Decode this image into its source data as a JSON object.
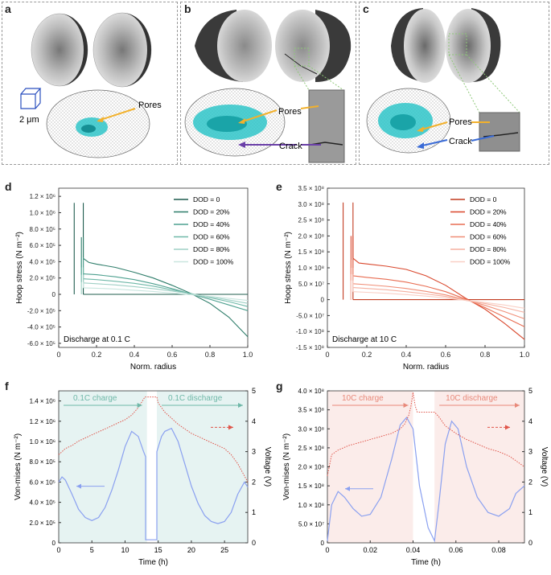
{
  "panels": {
    "a": {
      "label": "a",
      "scale_bar": "2 μm",
      "pores": "Pores"
    },
    "b": {
      "label": "b",
      "pores": "Pores",
      "crack": "Crack"
    },
    "c": {
      "label": "c",
      "pores": "Pores",
      "crack": "Crack"
    },
    "d": {
      "label": "d"
    },
    "e": {
      "label": "e"
    },
    "f": {
      "label": "f"
    },
    "g": {
      "label": "g"
    }
  },
  "colors": {
    "green": "#2e7d6a",
    "red": "#d9472c",
    "teal_fill": "#e6f3f2",
    "pink_fill": "#fbecea",
    "blue": "#8aa0f0",
    "cyan": "#2fc6c9",
    "pore_arrow": "#f2b12c",
    "crack_arrow_b": "#6a3fa8",
    "crack_arrow_c": "#3a6bd6"
  },
  "chart_data": [
    {
      "id": "d",
      "type": "line",
      "title": "",
      "xlabel": "Norm. radius",
      "ylabel": "Hoop stress (N m⁻²)",
      "xlim": [
        0,
        1.0
      ],
      "ylim": [
        -650000,
        1300000
      ],
      "xticks": [
        "0",
        "0.2",
        "0.4",
        "0.6",
        "0.8",
        "1.0"
      ],
      "yticks": [
        {
          "v": 1200000,
          "t": "1.2 × 10⁶"
        },
        {
          "v": 1000000,
          "t": "1.0 × 10⁶"
        },
        {
          "v": 800000,
          "t": "8.0 × 10⁵"
        },
        {
          "v": 600000,
          "t": "6.0 × 10⁵"
        },
        {
          "v": 400000,
          "t": "4.0 × 10⁵"
        },
        {
          "v": 200000,
          "t": "2.0 × 10⁵"
        },
        {
          "v": 0,
          "t": "0"
        },
        {
          "v": -200000,
          "t": "-2.0 × 10⁵"
        },
        {
          "v": -400000,
          "t": "-4.0 × 10⁵"
        },
        {
          "v": -600000,
          "t": "-6.0 × 10⁵"
        }
      ],
      "annotation": "Discharge at 0.1 C",
      "series": [
        {
          "name": "DOD = 0",
          "color": "#1f5c4e",
          "spike": [
            0.082,
            1120000
          ],
          "x": [
            0.13,
            0.2,
            0.3,
            0.4,
            0.5,
            0.6,
            0.7,
            0.8,
            0.9,
            1.0
          ],
          "y": [
            0,
            0,
            0,
            0,
            0,
            0,
            0,
            0,
            0,
            0
          ]
        },
        {
          "name": "DOD = 20%",
          "color": "#2e7d6a",
          "spike": [
            0.12,
            700000
          ],
          "x": [
            0.13,
            0.16,
            0.2,
            0.3,
            0.4,
            0.5,
            0.6,
            0.7,
            0.8,
            0.9,
            1.0
          ],
          "y": [
            440000,
            390000,
            370000,
            330000,
            270000,
            200000,
            110000,
            10000,
            -110000,
            -280000,
            -520000
          ]
        },
        {
          "name": "DOD = 40%",
          "color": "#4da08f",
          "spike": [
            0.12,
            450000
          ],
          "x": [
            0.13,
            0.2,
            0.3,
            0.4,
            0.5,
            0.6,
            0.7,
            0.8,
            0.9,
            1.0
          ],
          "y": [
            250000,
            240000,
            215000,
            180000,
            130000,
            70000,
            5000,
            -60000,
            -130000,
            -200000
          ]
        },
        {
          "name": "DOD = 60%",
          "color": "#6fb8a8",
          "spike": [
            0.12,
            330000
          ],
          "x": [
            0.13,
            0.2,
            0.3,
            0.4,
            0.5,
            0.6,
            0.7,
            0.8,
            0.9,
            1.0
          ],
          "y": [
            190000,
            180000,
            160000,
            135000,
            100000,
            55000,
            10000,
            -40000,
            -90000,
            -150000
          ]
        },
        {
          "name": "DOD = 80%",
          "color": "#9fd0c5",
          "spike": [
            0.12,
            240000
          ],
          "x": [
            0.13,
            0.2,
            0.3,
            0.4,
            0.5,
            0.6,
            0.7,
            0.8,
            0.9,
            1.0
          ],
          "y": [
            140000,
            130000,
            115000,
            95000,
            70000,
            40000,
            5000,
            -30000,
            -70000,
            -110000
          ]
        },
        {
          "name": "DOD = 100%",
          "color": "#c9e6df",
          "spike": [
            0.12,
            150000
          ],
          "x": [
            0.13,
            0.2,
            0.3,
            0.4,
            0.5,
            0.6,
            0.7,
            0.8,
            0.9,
            1.0
          ],
          "y": [
            80000,
            75000,
            65000,
            50000,
            35000,
            15000,
            -5000,
            -25000,
            -50000,
            -75000
          ]
        }
      ]
    },
    {
      "id": "e",
      "type": "line",
      "title": "",
      "xlabel": "Norm. radius",
      "ylabel": "Hoop stress (N m⁻²)",
      "xlim": [
        0,
        1.0
      ],
      "ylim": [
        -150000000,
        350000000
      ],
      "xticks": [
        "0",
        "0.2",
        "0.4",
        "0.6",
        "0.8",
        "1.0"
      ],
      "yticks": [
        {
          "v": 350000000,
          "t": "3.5 × 10⁸"
        },
        {
          "v": 300000000,
          "t": "3.0 × 10⁸"
        },
        {
          "v": 250000000,
          "t": "2.5 × 10⁸"
        },
        {
          "v": 200000000,
          "t": "2.0 × 10⁸"
        },
        {
          "v": 150000000,
          "t": "1.5 × 10⁸"
        },
        {
          "v": 100000000,
          "t": "1.0 × 10⁸"
        },
        {
          "v": 50000000,
          "t": "5.0 × 10⁷"
        },
        {
          "v": 0,
          "t": "0"
        },
        {
          "v": -50000000,
          "t": "-5.0 × 10⁷"
        },
        {
          "v": -100000000,
          "t": "-1.0 × 10⁸"
        },
        {
          "v": -150000000,
          "t": "-1.5 × 10⁸"
        }
      ],
      "annotation": "Discharge at 10 C",
      "series": [
        {
          "name": "DOD = 0",
          "color": "#c23a1f",
          "spike": [
            0.08,
            305000000
          ],
          "x": [
            0.13,
            0.2,
            0.3,
            0.4,
            0.5,
            0.6,
            0.7,
            0.8,
            0.9,
            1.0
          ],
          "y": [
            0,
            0,
            0,
            0,
            0,
            0,
            0,
            0,
            0,
            0
          ]
        },
        {
          "name": "DOD = 20%",
          "color": "#d9472c",
          "spike": [
            0.12,
            200000000
          ],
          "x": [
            0.13,
            0.16,
            0.2,
            0.3,
            0.4,
            0.5,
            0.6,
            0.7,
            0.8,
            0.9,
            1.0
          ],
          "y": [
            130000000,
            115000000,
            112000000,
            105000000,
            95000000,
            75000000,
            45000000,
            5000000,
            -30000000,
            -75000000,
            -125000000
          ]
        },
        {
          "name": "DOD = 40%",
          "color": "#e86d52",
          "spike": [
            0.12,
            125000000
          ],
          "x": [
            0.13,
            0.2,
            0.3,
            0.4,
            0.5,
            0.6,
            0.7,
            0.8,
            0.9,
            1.0
          ],
          "y": [
            75000000,
            70000000,
            64000000,
            55000000,
            42000000,
            25000000,
            2000000,
            -25000000,
            -55000000,
            -85000000
          ]
        },
        {
          "name": "DOD = 60%",
          "color": "#f08e77",
          "spike": [
            0.12,
            100000000
          ],
          "x": [
            0.13,
            0.2,
            0.3,
            0.4,
            0.5,
            0.6,
            0.7,
            0.8,
            0.9,
            1.0
          ],
          "y": [
            50000000,
            47000000,
            42000000,
            35000000,
            26000000,
            15000000,
            0,
            -18000000,
            -38000000,
            -60000000
          ]
        },
        {
          "name": "DOD = 80%",
          "color": "#f5b0a0",
          "spike": [
            0.12,
            80000000
          ],
          "x": [
            0.13,
            0.2,
            0.3,
            0.4,
            0.5,
            0.6,
            0.7,
            0.8,
            0.9,
            1.0
          ],
          "y": [
            38000000,
            35000000,
            31000000,
            25000000,
            18000000,
            10000000,
            -2000000,
            -12000000,
            -25000000,
            -40000000
          ]
        },
        {
          "name": "DOD = 100%",
          "color": "#f9cfc5",
          "spike": [
            0.12,
            60000000
          ],
          "x": [
            0.13,
            0.2,
            0.3,
            0.4,
            0.5,
            0.6,
            0.7,
            0.8,
            0.9,
            1.0
          ],
          "y": [
            25000000,
            23000000,
            20000000,
            16000000,
            11000000,
            5000000,
            -2000000,
            -9000000,
            -17000000,
            -27000000
          ]
        }
      ]
    },
    {
      "id": "f",
      "type": "line",
      "xlabel": "Time (h)",
      "ylabel": "Von-mises (N m⁻²)",
      "y2label": "Voltage (V)",
      "xlim": [
        0,
        28.5
      ],
      "ylim": [
        0,
        1500000
      ],
      "y2lim": [
        0,
        5
      ],
      "xticks": [
        0,
        5,
        10,
        15,
        20,
        25
      ],
      "yticks": [
        {
          "v": 1400000,
          "t": "1.4 × 10⁶"
        },
        {
          "v": 1200000,
          "t": "1.2 × 10⁶"
        },
        {
          "v": 1000000,
          "t": "1.0 × 10⁶"
        },
        {
          "v": 800000,
          "t": "8.0 × 10⁵"
        },
        {
          "v": 600000,
          "t": "6.0 × 10⁵"
        },
        {
          "v": 400000,
          "t": "4.0 × 10⁵"
        },
        {
          "v": 200000,
          "t": "2.0 × 10⁵"
        },
        {
          "v": 0,
          "t": "0"
        }
      ],
      "y2ticks": [
        0,
        1,
        2,
        3,
        4,
        5
      ],
      "charge_label": "0.1C charge",
      "discharge_label": "0.1C discharge",
      "charge_end": 13.3,
      "discharge_start": 14.8,
      "vonmises": {
        "name": "Von-mises",
        "color": "#8aa0f0",
        "x": [
          0,
          0.5,
          1,
          2,
          3,
          4,
          5,
          6,
          7,
          8,
          9,
          10,
          11,
          12,
          12.8,
          13.1,
          13.1,
          14.8,
          14.8,
          15.5,
          16,
          17,
          18,
          19,
          20,
          21,
          22,
          23,
          24,
          25,
          26,
          27,
          28,
          28.5
        ],
        "y": [
          600000,
          650000,
          620000,
          480000,
          330000,
          250000,
          220000,
          250000,
          350000,
          520000,
          720000,
          950000,
          1100000,
          1050000,
          900000,
          850000,
          30000,
          30000,
          900000,
          1050000,
          1100000,
          1130000,
          1000000,
          780000,
          560000,
          390000,
          270000,
          210000,
          190000,
          210000,
          300000,
          480000,
          600000,
          550000
        ]
      },
      "voltage": {
        "name": "Voltage",
        "color": "#e0554a",
        "x": [
          0,
          1,
          2,
          3,
          4,
          5,
          6,
          7,
          8,
          9,
          10,
          11,
          12,
          13,
          13.3,
          14.8,
          15,
          16,
          17,
          18,
          19,
          20,
          21,
          22,
          23,
          24,
          25,
          26,
          27,
          28,
          28.5
        ],
        "y": [
          2.9,
          3.1,
          3.2,
          3.35,
          3.45,
          3.55,
          3.65,
          3.75,
          3.85,
          3.95,
          4.05,
          4.2,
          4.45,
          4.8,
          4.8,
          4.8,
          4.6,
          4.3,
          4.1,
          3.9,
          3.75,
          3.6,
          3.5,
          3.4,
          3.3,
          3.2,
          3.1,
          2.9,
          2.6,
          2.2,
          2.0
        ]
      }
    },
    {
      "id": "g",
      "type": "line",
      "xlabel": "Time (h)",
      "ylabel": "Von-mises (N m⁻²)",
      "y2label": "Voltage (V)",
      "xlim": [
        0,
        0.092
      ],
      "ylim": [
        0,
        400000000
      ],
      "y2lim": [
        0,
        5
      ],
      "xticks": [
        0,
        0.02,
        0.04,
        0.06,
        0.08
      ],
      "yticks": [
        {
          "v": 400000000,
          "t": "4.0 × 10⁸"
        },
        {
          "v": 350000000,
          "t": "3.5 × 10⁸"
        },
        {
          "v": 300000000,
          "t": "3.0 × 10⁸"
        },
        {
          "v": 250000000,
          "t": "2.5 × 10⁸"
        },
        {
          "v": 200000000,
          "t": "2.0 × 10⁸"
        },
        {
          "v": 150000000,
          "t": "1.5 × 10⁸"
        },
        {
          "v": 100000000,
          "t": "1.0 × 10⁸"
        },
        {
          "v": 50000000,
          "t": "5.0 × 10⁷"
        },
        {
          "v": 0,
          "t": "0"
        }
      ],
      "y2ticks": [
        0,
        1,
        2,
        3,
        4,
        5
      ],
      "charge_label": "10C charge",
      "discharge_label": "10C discharge",
      "charge_end": 0.04,
      "discharge_start": 0.05,
      "vonmises": {
        "name": "Von-mises",
        "color": "#8aa0f0",
        "x": [
          0,
          0.002,
          0.005,
          0.008,
          0.012,
          0.016,
          0.02,
          0.025,
          0.03,
          0.034,
          0.037,
          0.04,
          0.043,
          0.047,
          0.05,
          0.052,
          0.055,
          0.058,
          0.061,
          0.065,
          0.07,
          0.075,
          0.08,
          0.085,
          0.088,
          0.092
        ],
        "y": [
          5000000,
          100000000,
          135000000,
          120000000,
          90000000,
          70000000,
          75000000,
          120000000,
          220000000,
          310000000,
          330000000,
          300000000,
          150000000,
          40000000,
          5000000,
          100000000,
          260000000,
          320000000,
          300000000,
          200000000,
          120000000,
          80000000,
          70000000,
          90000000,
          130000000,
          150000000
        ]
      },
      "voltage": {
        "name": "Voltage",
        "color": "#e0554a",
        "x": [
          0,
          0.002,
          0.005,
          0.01,
          0.015,
          0.02,
          0.025,
          0.03,
          0.034,
          0.036,
          0.038,
          0.039,
          0.04,
          0.041,
          0.042,
          0.045,
          0.05,
          0.052,
          0.055,
          0.06,
          0.065,
          0.07,
          0.075,
          0.08,
          0.085,
          0.09,
          0.092
        ],
        "y": [
          2.2,
          2.9,
          3.05,
          3.2,
          3.3,
          3.4,
          3.5,
          3.6,
          3.75,
          3.9,
          4.2,
          4.5,
          4.95,
          4.5,
          4.3,
          4.3,
          4.3,
          4.15,
          3.85,
          3.6,
          3.4,
          3.25,
          3.1,
          3.0,
          2.85,
          2.6,
          2.5
        ]
      }
    }
  ]
}
